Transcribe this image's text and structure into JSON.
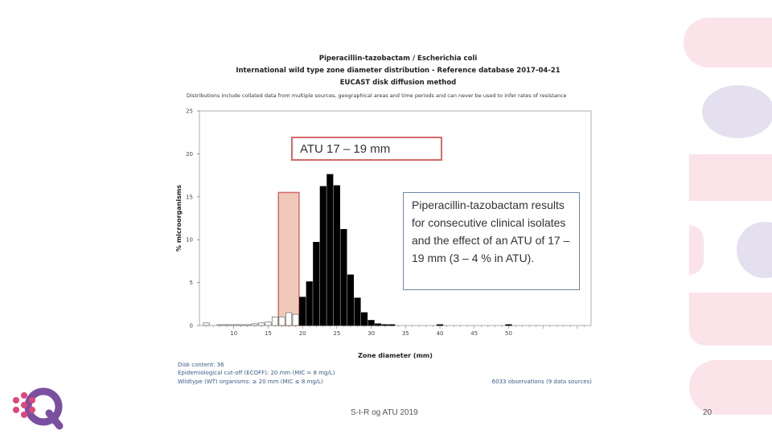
{
  "header": {
    "line1": "Piperacillin-tazobactam / Escherichia coli",
    "line2": "International wild type zone diameter distribution - Reference database 2017-04-21",
    "line3": "EUCAST disk diffusion method",
    "note": "Distributions include collated data from multiple sources, geographical areas and time periods and can never be used to infer rates of resistance"
  },
  "callouts": {
    "atu": "ATU 17 – 19 mm",
    "note": "Piperacillin-tazobactam results for consecutive clinical isolates and the effect of an ATU of 17 – 19 mm (3 – 4 % in ATU)."
  },
  "chart_data": {
    "type": "bar",
    "xlabel": "Zone diameter (mm)",
    "ylabel": "% microorganisms",
    "xlim": [
      5,
      62
    ],
    "ylim": [
      0,
      25
    ],
    "xticks": [
      10,
      15,
      20,
      25,
      30,
      35,
      40,
      45,
      50
    ],
    "yticks": [
      0,
      5,
      10,
      15,
      20,
      25
    ],
    "x": [
      6,
      8,
      9,
      10,
      11,
      12,
      13,
      14,
      15,
      16,
      17,
      18,
      19,
      20,
      21,
      22,
      23,
      24,
      25,
      26,
      27,
      28,
      29,
      30,
      31,
      32,
      33,
      40,
      50
    ],
    "values": [
      0.3,
      0.1,
      0.1,
      0.1,
      0.1,
      0.1,
      0.2,
      0.3,
      0.4,
      1.0,
      1.0,
      1.5,
      1.3,
      3.3,
      5.1,
      9.7,
      16.2,
      17.6,
      16.3,
      11.2,
      5.9,
      3.2,
      1.5,
      0.6,
      0.2,
      0.1,
      0.1,
      0.1,
      0.1
    ],
    "wild_type_from": 20,
    "atu_range": [
      17,
      19
    ],
    "atu_band_top": 15.5,
    "grid": false,
    "colors": {
      "wild_type": "#000000",
      "non_wild_type": "#ffffff",
      "atu_fill": "#efc9b9",
      "atu_stroke": "#d66a6a"
    }
  },
  "footer": {
    "disk_content": "Disk content: 36",
    "ecoff": "Epidemiological cut-off (ECOFF): 20 mm (MIC = 8 mg/L)",
    "wildtype": "Wildtype (WT) organisms: ≥ 20 mm (MIC ≤ 8 mg/L)",
    "observations": "6033 observations (9 data sources)"
  },
  "slide": {
    "footer_text": "S-I-R og ATU 2019",
    "page_number": "20"
  }
}
